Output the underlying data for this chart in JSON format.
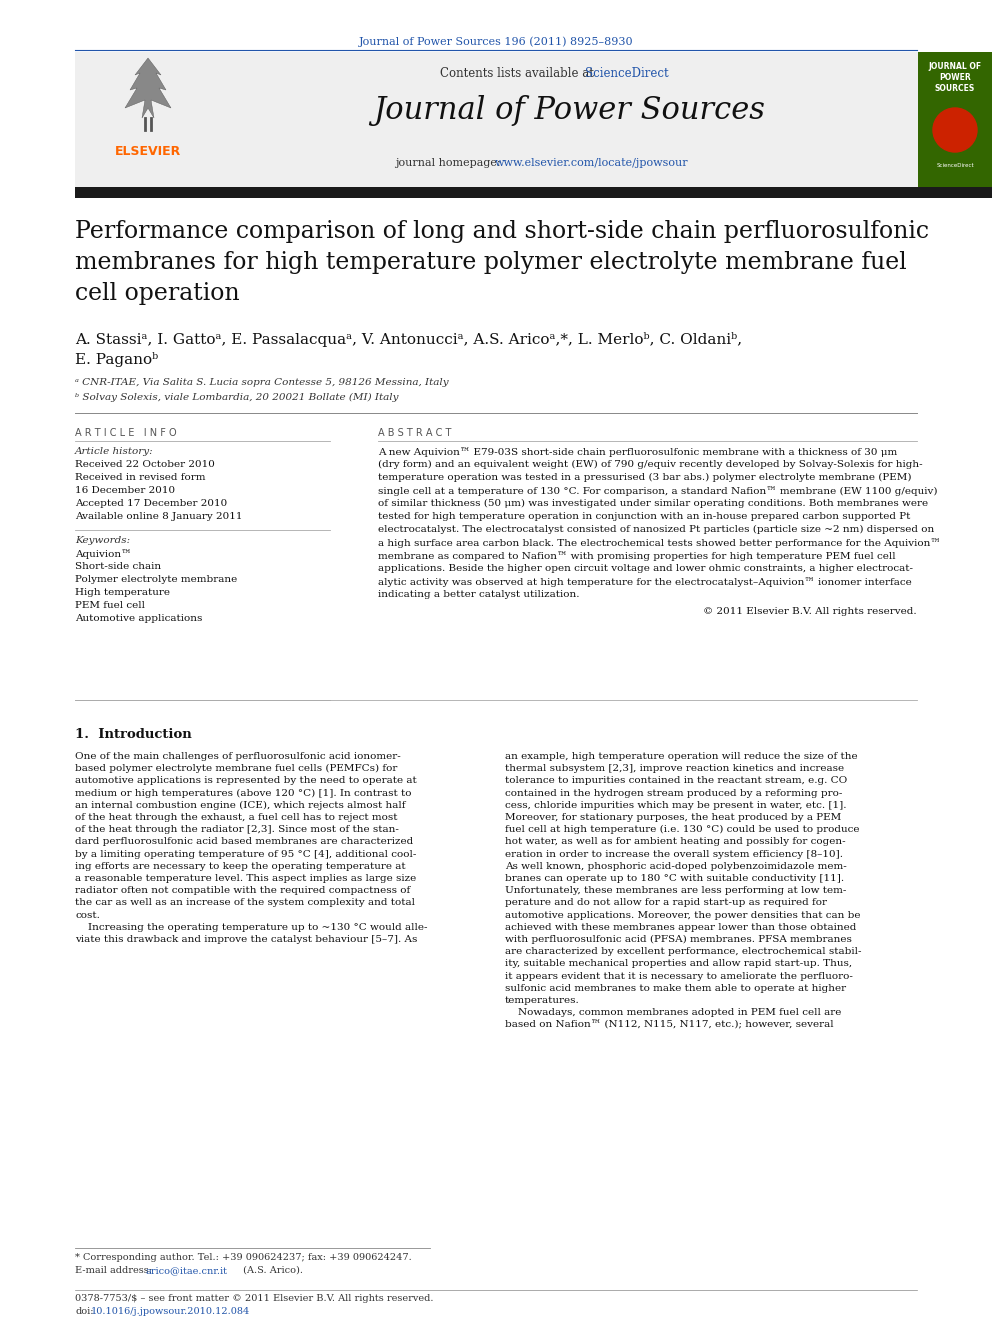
{
  "page_bg": "#ffffff",
  "header_citation": "Journal of Power Sources 196 (2011) 8925–8930",
  "header_citation_color": "#2255aa",
  "header_line_color": "#2255aa",
  "journal_name": "Journal of Power Sources",
  "contents_text": "Contents lists available at ",
  "sciencedirect_text": "ScienceDirect",
  "sciencedirect_color": "#2255aa",
  "homepage_text": "journal homepage: ",
  "homepage_url": "www.elsevier.com/locate/jpowsour",
  "homepage_url_color": "#2255aa",
  "header_bg": "#efefef",
  "black_bar_color": "#1a1a1a",
  "elsevier_color": "#ff6600",
  "article_title": "Performance comparison of long and short-side chain perfluorosulfonic\nmembranes for high temperature polymer electrolyte membrane fuel\ncell operation",
  "authors_line1": "A. Stassiᵃ, I. Gattoᵃ, E. Passalacquaᵃ, V. Antonucciᵃ, A.S. Aricoᵃ,*, L. Merloᵇ, C. Oldaniᵇ,",
  "authors_line2": "E. Paganoᵇ",
  "affiliation_a": "ᵃ CNR-ITAE, Via Salita S. Lucia sopra Contesse 5, 98126 Messina, Italy",
  "affiliation_b": "ᵇ Solvay Solexis, viale Lombardia, 20 20021 Bollate (MI) Italy",
  "article_info_label": "A R T I C L E   I N F O",
  "abstract_label": "A B S T R A C T",
  "article_history_label": "Article history:",
  "received1": "Received 22 October 2010",
  "received2": "Received in revised form",
  "received2b": "16 December 2010",
  "accepted": "Accepted 17 December 2010",
  "available": "Available online 8 January 2011",
  "keywords_label": "Keywords:",
  "keywords": [
    "Aquivion™",
    "Short-side chain",
    "Polymer electrolyte membrane",
    "High temperature",
    "PEM fuel cell",
    "Automotive applications"
  ],
  "abstract_text": "A new Aquivion™ E79-03S short-side chain perfluorosulfonic membrane with a thickness of 30 μm\n(dry form) and an equivalent weight (EW) of 790 g/equiv recently developed by Solvay-Solexis for high-\ntemperature operation was tested in a pressurised (3 bar abs.) polymer electrolyte membrane (PEM)\nsingle cell at a temperature of 130 °C. For comparison, a standard Nafion™ membrane (EW 1100 g/equiv)\nof similar thickness (50 μm) was investigated under similar operating conditions. Both membranes were\ntested for high temperature operation in conjunction with an in-house prepared carbon supported Pt\nelectrocatalyst. The electrocatalyst consisted of nanosized Pt particles (particle size ~2 nm) dispersed on\na high surface area carbon black. The electrochemical tests showed better performance for the Aquivion™\nmembrane as compared to Nafion™ with promising properties for high temperature PEM fuel cell\napplications. Beside the higher open circuit voltage and lower ohmic constraints, a higher electrocat-\nalytic activity was observed at high temperature for the electrocatalyst–Aquivion™ ionomer interface\nindicating a better catalyst utilization.",
  "copyright": "© 2011 Elsevier B.V. All rights reserved.",
  "intro_heading": "1.  Introduction",
  "intro_col1_lines": [
    "One of the main challenges of perfluorosulfonic acid ionomer-",
    "based polymer electrolyte membrane fuel cells (PEMFCs) for",
    "automotive applications is represented by the need to operate at",
    "medium or high temperatures (above 120 °C) [1]. In contrast to",
    "an internal combustion engine (ICE), which rejects almost half",
    "of the heat through the exhaust, a fuel cell has to reject most",
    "of the heat through the radiator [2,3]. Since most of the stan-",
    "dard perfluorosulfonic acid based membranes are characterized",
    "by a limiting operating temperature of 95 °C [4], additional cool-",
    "ing efforts are necessary to keep the operating temperature at",
    "a reasonable temperature level. This aspect implies as large size",
    "radiator often not compatible with the required compactness of",
    "the car as well as an increase of the system complexity and total",
    "cost.",
    "    Increasing the operating temperature up to ~130 °C would alle-",
    "viate this drawback and improve the catalyst behaviour [5–7]. As"
  ],
  "intro_col2_lines": [
    "an example, high temperature operation will reduce the size of the",
    "thermal subsystem [2,3], improve reaction kinetics and increase",
    "tolerance to impurities contained in the reactant stream, e.g. CO",
    "contained in the hydrogen stream produced by a reforming pro-",
    "cess, chloride impurities which may be present in water, etc. [1].",
    "Moreover, for stationary purposes, the heat produced by a PEM",
    "fuel cell at high temperature (i.e. 130 °C) could be used to produce",
    "hot water, as well as for ambient heating and possibly for cogen-",
    "eration in order to increase the overall system efficiency [8–10].",
    "As well known, phosphoric acid-doped polybenzoimidazole mem-",
    "branes can operate up to 180 °C with suitable conductivity [11].",
    "Unfortunately, these membranes are less performing at low tem-",
    "perature and do not allow for a rapid start-up as required for",
    "automotive applications. Moreover, the power densities that can be",
    "achieved with these membranes appear lower than those obtained",
    "with perfluorosulfonic acid (PFSA) membranes. PFSA membranes",
    "are characterized by excellent performance, electrochemical stabil-",
    "ity, suitable mechanical properties and allow rapid start-up. Thus,",
    "it appears evident that it is necessary to ameliorate the perfluoro-",
    "sulfonic acid membranes to make them able to operate at higher",
    "temperatures.",
    "    Nowadays, common membranes adopted in PEM fuel cell are",
    "based on Nafion™ (N112, N115, N117, etc.); however, several"
  ],
  "footer_issn": "0378-7753/$ – see front matter © 2011 Elsevier B.V. All rights reserved.",
  "footer_doi_prefix": "doi:",
  "footer_doi_link": "10.1016/j.jpowsour.2010.12.084",
  "footer_doi_color": "#2255aa",
  "corresponding_note": "* Corresponding author. Tel.: +39 090624237; fax: +39 090624247.",
  "email_label": "E-mail address: ",
  "email_link": "arico@itae.cnr.it",
  "email_suffix": " (A.S. Arico).",
  "email_link_color": "#2255aa",
  "cover_bg": "#336600",
  "cover_text": "JOURNAL OF\nPOWER\nSOURCES",
  "cover_circle_color": "#cc2200"
}
